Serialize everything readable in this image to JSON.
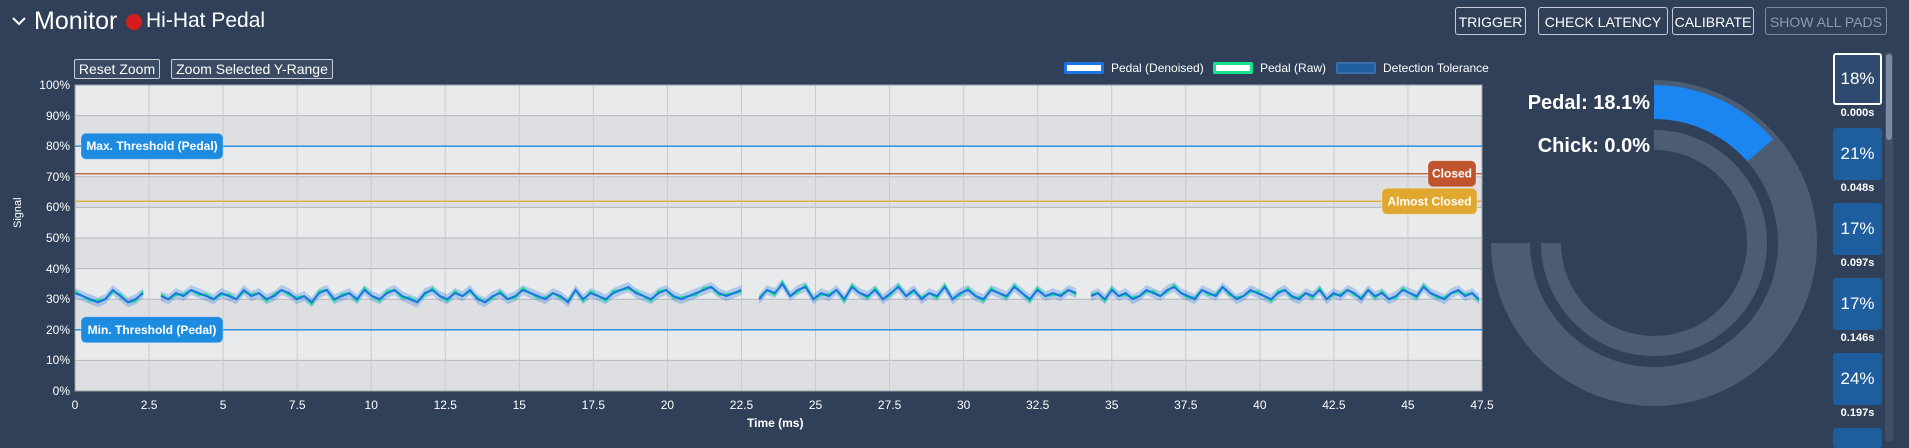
{
  "header": {
    "section_title": "Monitor",
    "pad_name": "Hi-Hat Pedal",
    "buttons": {
      "trigger": "TRIGGER",
      "check_latency": "CHECK LATENCY",
      "calibrate": "CALIBRATE",
      "show_all_pads": "SHOW  ALL PADS"
    }
  },
  "chart_controls": {
    "reset_zoom": "Reset Zoom",
    "zoom_selected": "Zoom Selected Y-Range"
  },
  "legend": {
    "denoised": "Pedal (Denoised)",
    "raw": "Pedal (Raw)",
    "tolerance": "Detection Tolerance",
    "colors": {
      "denoised": "#1b74e4",
      "raw": "#19e28d",
      "tolerance": "#1e5d9e"
    }
  },
  "chart_data": {
    "type": "line",
    "xlabel": "Time (ms)",
    "ylabel": "Signal",
    "xlim": [
      0,
      47.5
    ],
    "ylim": [
      0,
      100
    ],
    "x_ticks": [
      "0",
      "2.5",
      "5",
      "7.5",
      "10",
      "12.5",
      "15",
      "17.5",
      "20",
      "22.5",
      "25",
      "27.5",
      "30",
      "32.5",
      "35",
      "37.5",
      "40",
      "42.5",
      "45",
      "47.5"
    ],
    "y_ticks": [
      "0%",
      "10%",
      "20%",
      "30%",
      "40%",
      "50%",
      "60%",
      "70%",
      "80%",
      "90%",
      "100%"
    ],
    "thresholds": [
      {
        "label": "Max. Threshold (Pedal)",
        "value": 80,
        "color": "#1d8ce0"
      },
      {
        "label": "Min. Threshold (Pedal)",
        "value": 20,
        "color": "#1d8ce0"
      },
      {
        "label": "Closed",
        "value": 71,
        "color": "#c0542c"
      },
      {
        "label": "Almost Closed",
        "value": 62,
        "color": "#e0a82e"
      }
    ],
    "segments": [
      {
        "x_start": 0,
        "x_end": 2.3,
        "values": [
          32,
          31,
          30,
          29,
          30,
          33,
          31,
          29,
          30,
          32
        ]
      },
      {
        "x_start": 2.9,
        "x_end": 22.5,
        "values": [
          31,
          30,
          32,
          31,
          33,
          32,
          31,
          30,
          32,
          31,
          30,
          33,
          31,
          32,
          30,
          31,
          33,
          32,
          30,
          31,
          29,
          32,
          33,
          30,
          31,
          32,
          30,
          33,
          31,
          30,
          32,
          33,
          31,
          30,
          29,
          32,
          33,
          31,
          30,
          32,
          31,
          33,
          30,
          29,
          31,
          32,
          30,
          31,
          33,
          32,
          31,
          30,
          32,
          31,
          29,
          33,
          30,
          32,
          31,
          30,
          32,
          33,
          34,
          32,
          31,
          30,
          32,
          33,
          31,
          30,
          31,
          32,
          33,
          34,
          32,
          31,
          32,
          33
        ]
      },
      {
        "x_start": 23.1,
        "x_end": 33.8,
        "values": [
          30,
          33,
          32,
          35,
          31,
          33,
          34,
          30,
          32,
          31,
          33,
          30,
          34,
          32,
          31,
          33,
          30,
          32,
          34,
          31,
          33,
          30,
          32,
          31,
          34,
          30,
          32,
          33,
          31,
          30,
          33,
          32,
          31,
          34,
          32,
          30,
          33,
          31,
          32,
          31,
          33,
          32
        ]
      },
      {
        "x_start": 34.3,
        "x_end": 47.4,
        "values": [
          31,
          32,
          30,
          33,
          31,
          32,
          30,
          31,
          33,
          32,
          31,
          33,
          34,
          32,
          31,
          30,
          33,
          32,
          31,
          34,
          32,
          30,
          31,
          33,
          32,
          31,
          30,
          32,
          33,
          31,
          30,
          32,
          31,
          33,
          30,
          32,
          31,
          33,
          32,
          30,
          33,
          31,
          32,
          30,
          31,
          33,
          32,
          31,
          34,
          32,
          31,
          30,
          32,
          33,
          31,
          32,
          30
        ]
      }
    ]
  },
  "gauge": {
    "pedal_label": "Pedal: 18.1%",
    "chick_label": "Chick: 0.0%",
    "pedal_value": 18.1,
    "chick_value": 0.0
  },
  "tiles": [
    {
      "value": "18%",
      "time": "0.000s",
      "selected": true
    },
    {
      "value": "21%",
      "time": "0.048s",
      "selected": false
    },
    {
      "value": "17%",
      "time": "0.097s",
      "selected": false
    },
    {
      "value": "17%",
      "time": "0.146s",
      "selected": false
    },
    {
      "value": "24%",
      "time": "0.197s",
      "selected": false
    }
  ]
}
